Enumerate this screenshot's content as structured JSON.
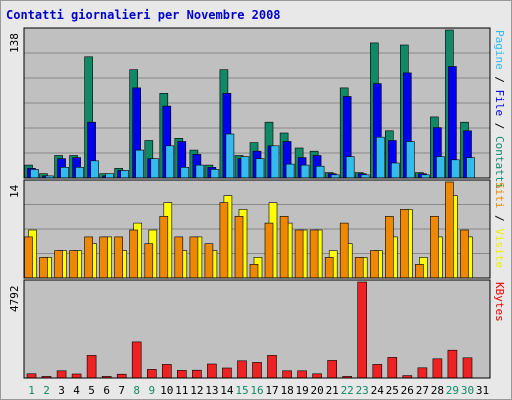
{
  "chart_data": [
    {
      "type": "bar",
      "title": "Contatti giornalieri per Novembre 2008",
      "ymax_label": "138",
      "ylim": [
        0,
        138
      ],
      "right_label_parts": [
        {
          "text": "Pagine",
          "color": "#33bbee"
        },
        {
          "text": " / ",
          "color": "#000000"
        },
        {
          "text": "File",
          "color": "#0000ee"
        },
        {
          "text": " / ",
          "color": "#000000"
        },
        {
          "text": "Contatti",
          "color": "#118866"
        }
      ],
      "categories": [
        "1",
        "2",
        "3",
        "4",
        "5",
        "6",
        "7",
        "8",
        "9",
        "10",
        "11",
        "12",
        "13",
        "14",
        "15",
        "16",
        "17",
        "18",
        "19",
        "20",
        "21",
        "22",
        "23",
        "24",
        "25",
        "26",
        "27",
        "28",
        "29",
        "30",
        "31"
      ],
      "series": [
        {
          "name": "Contatti",
          "color": "#118866",
          "values": [
            12,
            4,
            21,
            21,
            113,
            4,
            9,
            101,
            35,
            79,
            37,
            26,
            12,
            101,
            21,
            33,
            52,
            42,
            28,
            25,
            5,
            84,
            5,
            126,
            44,
            124,
            5,
            57,
            138,
            52,
            0
          ]
        },
        {
          "name": "File",
          "color": "#0000ee",
          "values": [
            9,
            2,
            18,
            19,
            52,
            2,
            7,
            84,
            18,
            67,
            34,
            22,
            10,
            79,
            18,
            25,
            30,
            34,
            19,
            21,
            4,
            76,
            4,
            88,
            35,
            98,
            4,
            47,
            104,
            44,
            0
          ]
        },
        {
          "name": "Pagine",
          "color": "#33bbee",
          "values": [
            8,
            2,
            10,
            10,
            16,
            4,
            7,
            26,
            18,
            30,
            10,
            12,
            8,
            41,
            20,
            18,
            30,
            13,
            12,
            11,
            3,
            20,
            3,
            38,
            14,
            34,
            3,
            20,
            17,
            19,
            0
          ]
        }
      ]
    },
    {
      "type": "bar",
      "ymax_label": "14",
      "ylim": [
        0,
        14
      ],
      "right_label_parts": [
        {
          "text": "Siti",
          "color": "#ee8800"
        },
        {
          "text": " / ",
          "color": "#000000"
        },
        {
          "text": "Visite",
          "color": "#eeee00"
        }
      ],
      "categories": [
        "1",
        "2",
        "3",
        "4",
        "5",
        "6",
        "7",
        "8",
        "9",
        "10",
        "11",
        "12",
        "13",
        "14",
        "15",
        "16",
        "17",
        "18",
        "19",
        "20",
        "21",
        "22",
        "23",
        "24",
        "25",
        "26",
        "27",
        "28",
        "29",
        "30",
        "31"
      ],
      "series": [
        {
          "name": "Visite",
          "color": "#ffff00",
          "values": [
            7,
            3,
            4,
            4,
            5,
            6,
            4,
            8,
            7,
            11,
            4,
            6,
            4,
            12,
            10,
            3,
            11,
            8,
            7,
            7,
            4,
            5,
            3,
            4,
            6,
            10,
            3,
            6,
            12,
            6,
            0
          ]
        },
        {
          "name": "Siti",
          "color": "#ee8800",
          "values": [
            6,
            3,
            4,
            4,
            6,
            6,
            6,
            7,
            5,
            9,
            6,
            6,
            5,
            11,
            9,
            2,
            8,
            9,
            7,
            7,
            3,
            8,
            3,
            4,
            9,
            10,
            2,
            9,
            14,
            7,
            0
          ]
        }
      ]
    },
    {
      "type": "bar",
      "ymax_label": "4792",
      "ylim": [
        0,
        4792
      ],
      "right_label_parts": [
        {
          "text": "KBytes",
          "color": "#ee0000"
        }
      ],
      "categories": [
        "1",
        "2",
        "3",
        "4",
        "5",
        "6",
        "7",
        "8",
        "9",
        "10",
        "11",
        "12",
        "13",
        "14",
        "15",
        "16",
        "17",
        "18",
        "19",
        "20",
        "21",
        "22",
        "23",
        "24",
        "25",
        "26",
        "27",
        "28",
        "29",
        "30",
        "31"
      ],
      "series": [
        {
          "name": "KBytes",
          "color": "#ee2222",
          "values": [
            210,
            80,
            360,
            200,
            1130,
            80,
            190,
            1800,
            430,
            680,
            380,
            390,
            700,
            500,
            860,
            780,
            1130,
            360,
            360,
            210,
            880,
            80,
            4792,
            680,
            1030,
            120,
            510,
            960,
            1390,
            1010,
            0
          ]
        }
      ]
    }
  ],
  "x_axis": {
    "labels": [
      "1",
      "2",
      "3",
      "4",
      "5",
      "6",
      "7",
      "8",
      "9",
      "10",
      "11",
      "12",
      "13",
      "14",
      "15",
      "16",
      "17",
      "18",
      "19",
      "20",
      "21",
      "22",
      "23",
      "24",
      "25",
      "26",
      "27",
      "28",
      "29",
      "30",
      "31"
    ],
    "weekend_days": [
      "1",
      "2",
      "8",
      "9",
      "15",
      "16",
      "22",
      "23",
      "29",
      "30"
    ],
    "weekend_color": "#118866",
    "weekday_color": "#000000"
  },
  "colors": {
    "plot_background": "#c0c0c0",
    "frame_background": "#e8e8e8",
    "title_color": "#0000cc",
    "gridline": "#888888",
    "panel_border": "#000000"
  }
}
